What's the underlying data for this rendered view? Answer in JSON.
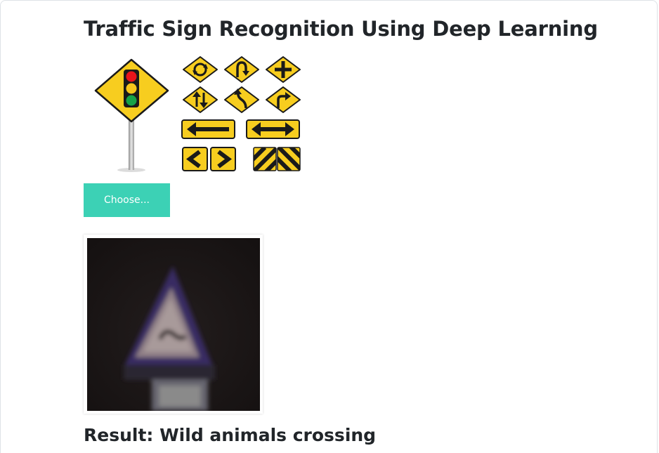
{
  "page": {
    "title": "Traffic Sign Recognition Using Deep Learning"
  },
  "upload": {
    "button_label": "Choose..."
  },
  "result": {
    "label": "Result: Wild animals crossing"
  },
  "colors": {
    "accent": "#3cd1b5",
    "sign_yellow": "#f7cd1f",
    "sign_border": "#1a1a1a",
    "preview_bg": "#1b1616"
  },
  "icons": [
    "traffic-light-sign-icon",
    "roundabout-sign-icon",
    "u-turn-sign-icon",
    "crossroad-sign-icon",
    "two-way-traffic-sign-icon",
    "winding-road-sign-icon",
    "right-turn-sign-icon",
    "left-arrow-sign-icon",
    "double-arrow-sign-icon",
    "chevron-left-sign-icon",
    "chevron-right-sign-icon",
    "hazard-stripe-sign-icon"
  ]
}
